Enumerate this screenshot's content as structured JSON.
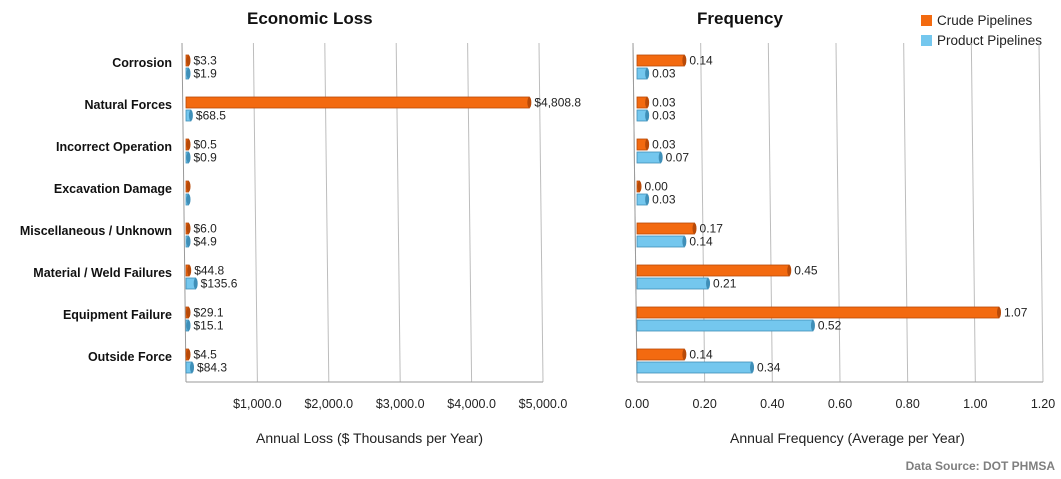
{
  "chart_data": [
    {
      "type": "bar",
      "title": "Economic Loss",
      "xlabel": "Annual Loss ($ Thousands per Year)",
      "categories": [
        "Corrosion",
        "Natural Forces",
        "Incorrect Operation",
        "Excavation Damage",
        "Miscellaneous / Unknown",
        "Material / Weld Failures",
        "Equipment Failure",
        "Outside Force"
      ],
      "series": [
        {
          "name": "Crude Pipelines",
          "values": [
            3.3,
            4808.8,
            0.5,
            0.0,
            6.0,
            44.8,
            29.1,
            4.5
          ],
          "labels": [
            "$3.3",
            "$4,808.8",
            "$0.5",
            "",
            "$6.0",
            "$44.8",
            "$29.1",
            "$4.5"
          ]
        },
        {
          "name": "Product Pipelines",
          "values": [
            1.9,
            68.5,
            0.9,
            0.0,
            4.9,
            135.6,
            15.1,
            84.3
          ],
          "labels": [
            "$1.9",
            "$68.5",
            "$0.9",
            "",
            "$4.9",
            "$135.6",
            "$15.1",
            "$84.3"
          ]
        }
      ],
      "xlim": [
        0,
        5000
      ],
      "ticks": [
        1000,
        2000,
        3000,
        4000,
        5000
      ],
      "tick_labels": [
        "$1,000.0",
        "$2,000.0",
        "$3,000.0",
        "$4,000.0",
        "$5,000.0"
      ],
      "grid": true,
      "orientation": "horizontal"
    },
    {
      "type": "bar",
      "title": "Frequency",
      "xlabel": "Annual Frequency (Average per Year)",
      "categories": [
        "Corrosion",
        "Natural Forces",
        "Incorrect Operation",
        "Excavation Damage",
        "Miscellaneous / Unknown",
        "Material / Weld Failures",
        "Equipment Failure",
        "Outside Force"
      ],
      "series": [
        {
          "name": "Crude Pipelines",
          "values": [
            0.14,
            0.03,
            0.03,
            0.0,
            0.17,
            0.45,
            1.07,
            0.14
          ],
          "labels": [
            "0.14",
            "0.03",
            "0.03",
            "0.00",
            "0.17",
            "0.45",
            "1.07",
            "0.14"
          ]
        },
        {
          "name": "Product Pipelines",
          "values": [
            0.03,
            0.03,
            0.07,
            0.03,
            0.14,
            0.21,
            0.52,
            0.34
          ],
          "labels": [
            "0.03",
            "0.03",
            "0.07",
            "0.03",
            "0.14",
            "0.21",
            "0.52",
            "0.34"
          ]
        }
      ],
      "xlim": [
        0,
        1.2
      ],
      "ticks": [
        0,
        0.2,
        0.4,
        0.6,
        0.8,
        1.0,
        1.2
      ],
      "tick_labels": [
        "0.00",
        "0.20",
        "0.40",
        "0.60",
        "0.80",
        "1.00",
        "1.20"
      ],
      "grid": true,
      "orientation": "horizontal"
    }
  ],
  "legend": {
    "items": [
      {
        "name": "Crude Pipelines",
        "color": "#f36a10"
      },
      {
        "name": "Product Pipelines",
        "color": "#74c7ee"
      }
    ],
    "placement": "top-right"
  },
  "source": "Data Source: DOT PHMSA"
}
